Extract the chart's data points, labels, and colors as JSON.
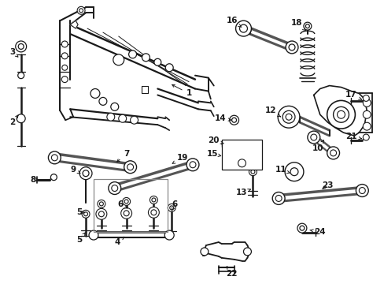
{
  "bg_color": "#ffffff",
  "fig_width": 4.89,
  "fig_height": 3.6,
  "dpi": 100,
  "line_color": "#1a1a1a",
  "label_fontsize": 7.5,
  "line_width": 0.9
}
